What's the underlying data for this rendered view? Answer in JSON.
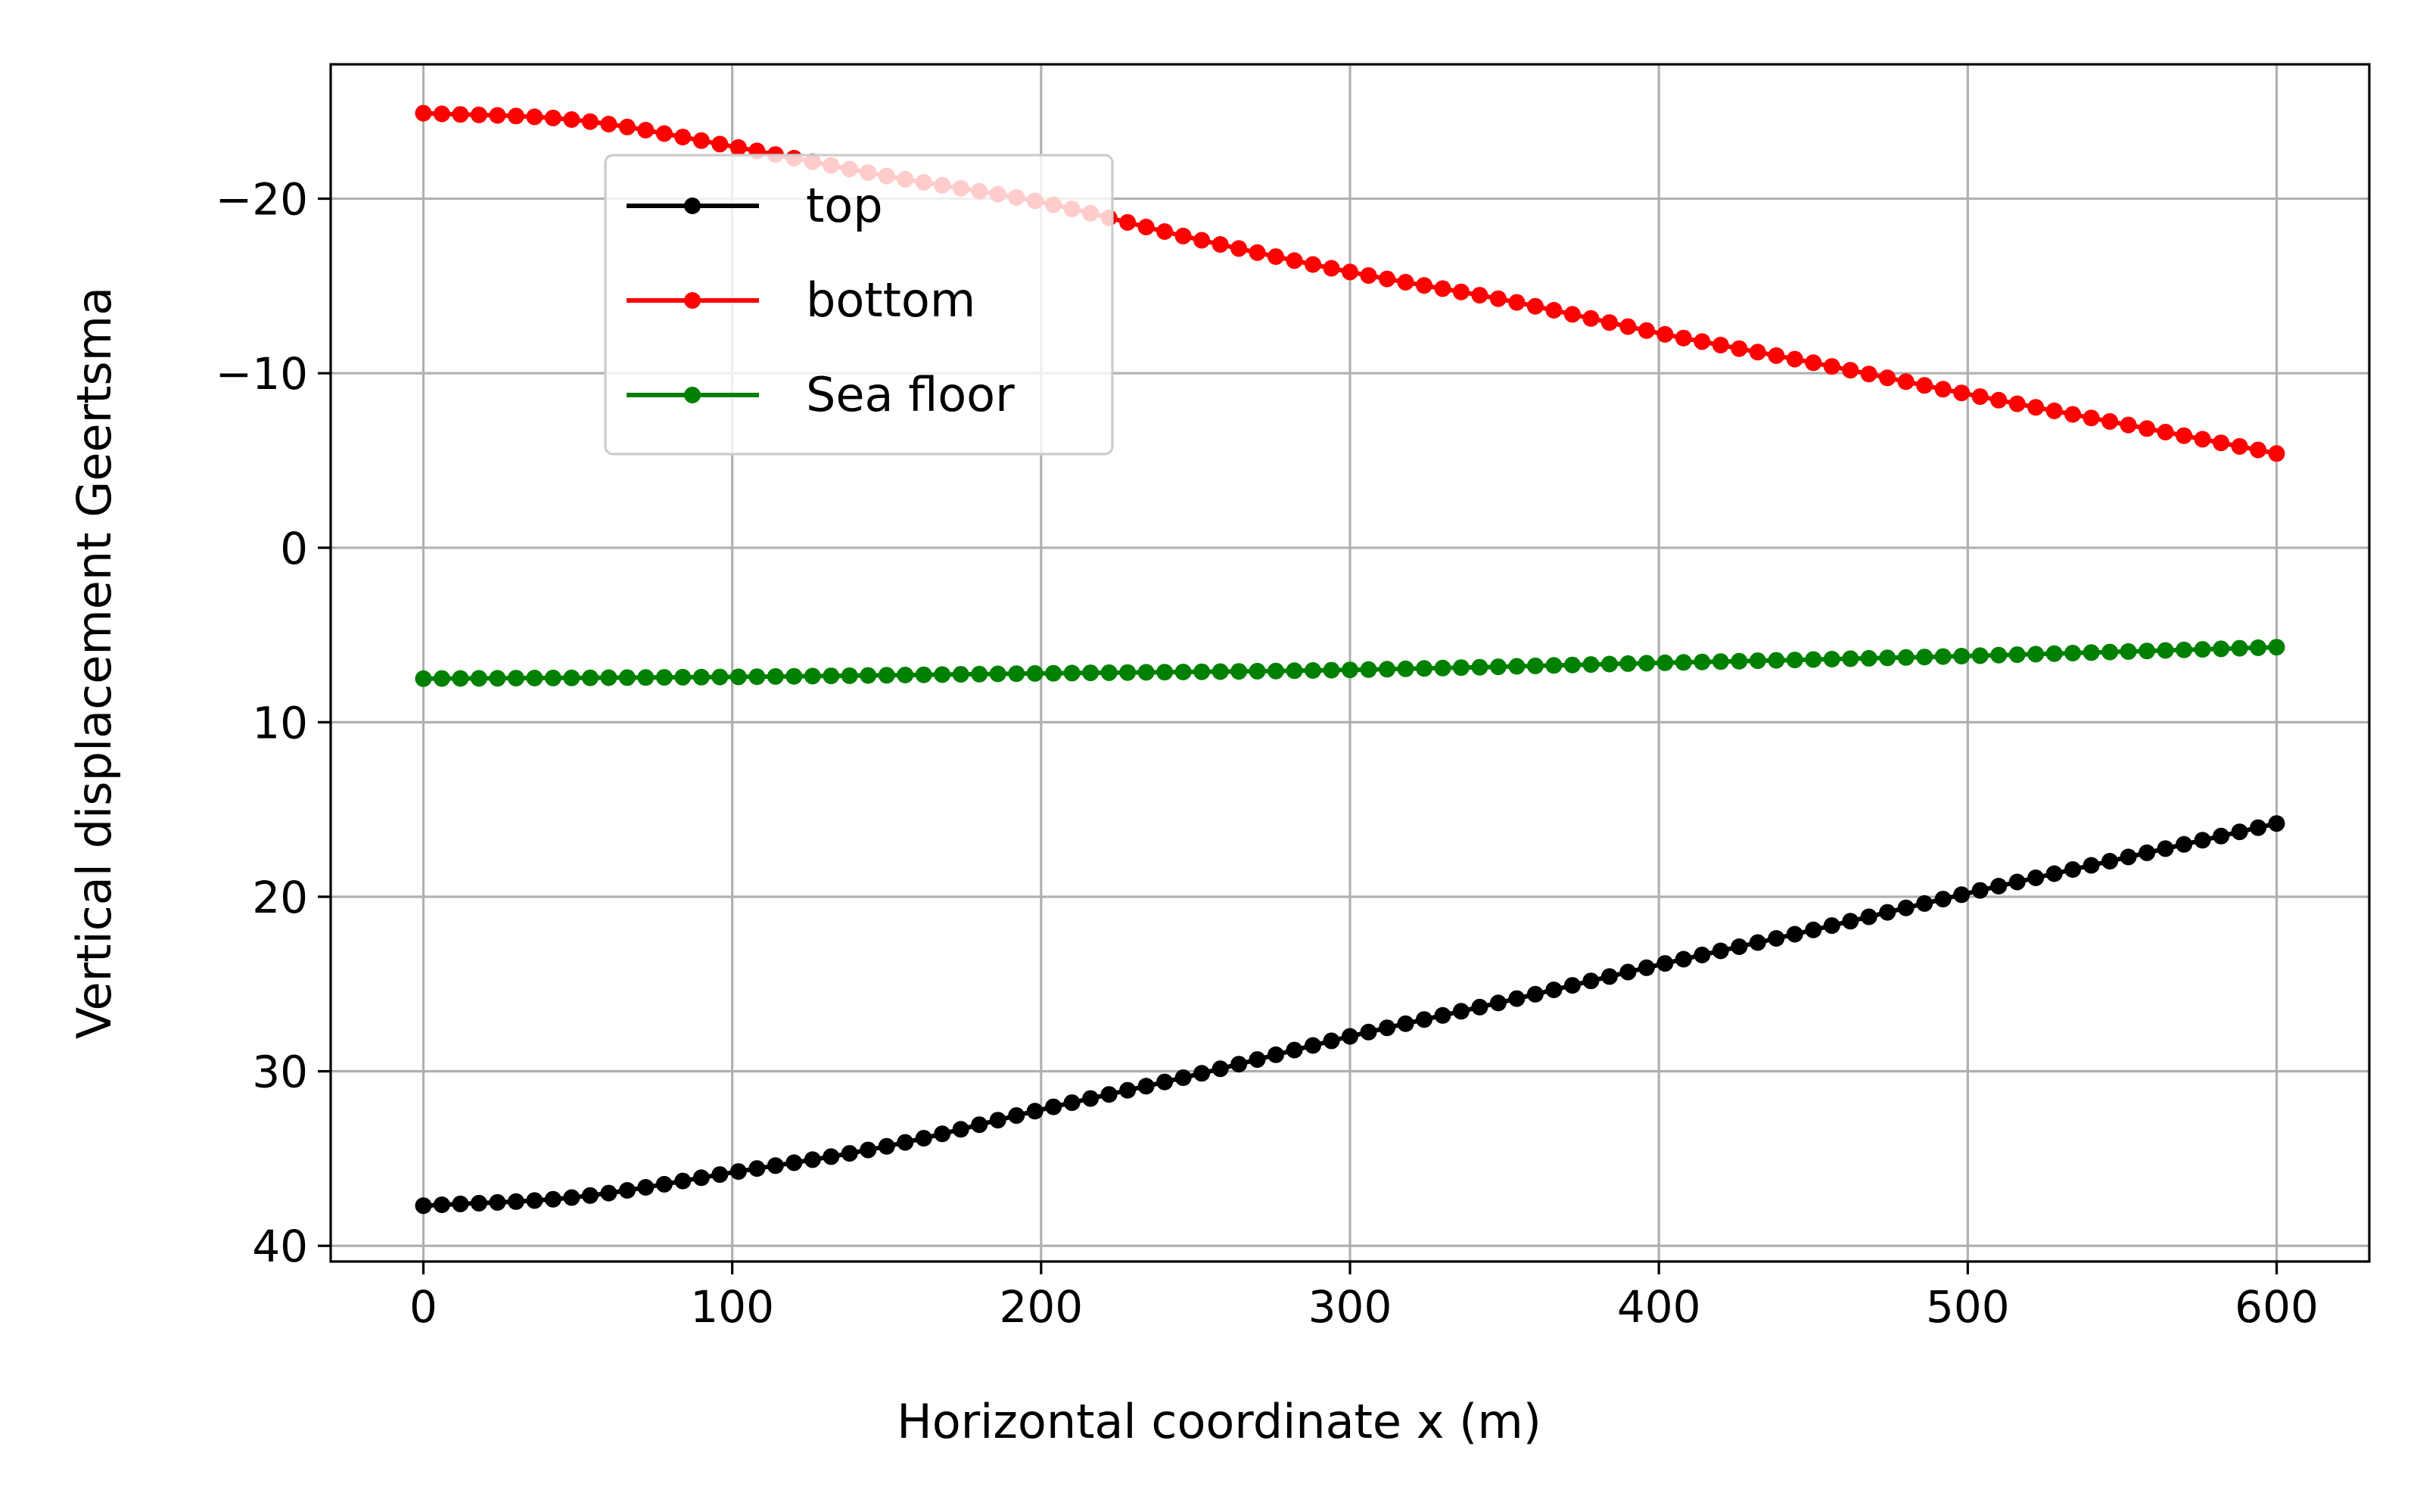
{
  "chart_data": {
    "type": "line",
    "title": "",
    "xlabel": "Horizontal coordinate x (m)",
    "ylabel": "Vertical displacement Geertsma",
    "xlim": [
      -30,
      630
    ],
    "ylim": [
      40.9,
      -27.7
    ],
    "y_inverted": true,
    "grid": true,
    "legend_position": "upper-left-center",
    "x_ticks": [
      0,
      100,
      200,
      300,
      400,
      500,
      600
    ],
    "x_tick_labels": [
      "0",
      "100",
      "200",
      "300",
      "400",
      "500",
      "600"
    ],
    "y_ticks": [
      -20,
      -10,
      0,
      10,
      20,
      30,
      40
    ],
    "y_tick_labels": [
      "−20",
      "−10",
      "0",
      "10",
      "20",
      "30",
      "40"
    ],
    "series": [
      {
        "name": "top",
        "color": "#000000",
        "marker": "circle",
        "x_start": 0,
        "x_end": 600,
        "x_step": 6,
        "anchors_x": [
          0,
          50,
          100,
          150,
          200,
          250,
          300,
          350,
          400,
          450,
          500,
          550,
          600
        ],
        "anchors_y": [
          37.7,
          37.2,
          35.8,
          34.3,
          32.2,
          30.2,
          28.0,
          26.0,
          23.9,
          21.9,
          19.8,
          17.8,
          15.8
        ]
      },
      {
        "name": "bottom",
        "color": "#ff0000",
        "marker": "circle",
        "x_start": 0,
        "x_end": 600,
        "x_step": 6,
        "anchors_x": [
          0,
          50,
          100,
          150,
          200,
          250,
          300,
          350,
          400,
          450,
          500,
          550,
          600
        ],
        "anchors_y": [
          -24.9,
          -24.5,
          -23.0,
          -21.3,
          -19.8,
          -17.7,
          -15.8,
          -14.2,
          -12.3,
          -10.6,
          -8.8,
          -7.1,
          -5.4
        ]
      },
      {
        "name": "Sea floor",
        "color": "#008000",
        "marker": "circle",
        "x_start": 0,
        "x_end": 600,
        "x_step": 6,
        "anchors_x": [
          0,
          100,
          200,
          300,
          400,
          500,
          600
        ],
        "anchors_y": [
          7.5,
          7.4,
          7.2,
          7.0,
          6.6,
          6.2,
          5.7
        ]
      }
    ]
  }
}
